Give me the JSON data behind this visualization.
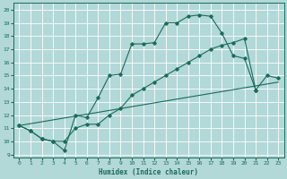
{
  "xlabel": "Humidex (Indice chaleur)",
  "bg_color": "#b2d8d8",
  "grid_color": "#c8e8e8",
  "line_color": "#1a6b5a",
  "xlim": [
    -0.5,
    23.5
  ],
  "ylim": [
    8.8,
    20.5
  ],
  "xticks": [
    0,
    1,
    2,
    3,
    4,
    5,
    6,
    7,
    8,
    9,
    10,
    11,
    12,
    13,
    14,
    15,
    16,
    17,
    18,
    19,
    20,
    21,
    22,
    23
  ],
  "yticks": [
    9,
    10,
    11,
    12,
    13,
    14,
    15,
    16,
    17,
    18,
    19,
    20
  ],
  "curve1_x": [
    0,
    1,
    2,
    3,
    4,
    5,
    6,
    7,
    8,
    9,
    10,
    11,
    12,
    13,
    14,
    15,
    16,
    17,
    18,
    19,
    20,
    21
  ],
  "curve1_y": [
    11.2,
    10.8,
    10.2,
    10.0,
    9.3,
    12.0,
    11.8,
    13.3,
    15.0,
    15.1,
    17.4,
    17.4,
    17.5,
    19.0,
    19.0,
    19.5,
    19.6,
    19.5,
    18.2,
    16.5,
    16.3,
    13.9
  ],
  "curve2_x": [
    0,
    1,
    2,
    3,
    4,
    5,
    6,
    7,
    8,
    9,
    10,
    11,
    12,
    13,
    14,
    15,
    16,
    17,
    18,
    19,
    20,
    21,
    22,
    23
  ],
  "curve2_y": [
    11.2,
    10.8,
    10.2,
    10.0,
    10.0,
    11.0,
    11.3,
    11.3,
    12.0,
    12.5,
    13.5,
    14.0,
    14.5,
    15.0,
    15.5,
    16.0,
    16.5,
    17.0,
    17.3,
    17.5,
    17.8,
    13.9,
    15.0,
    14.8
  ],
  "curve3_x": [
    0,
    23
  ],
  "curve3_y": [
    11.2,
    14.5
  ]
}
